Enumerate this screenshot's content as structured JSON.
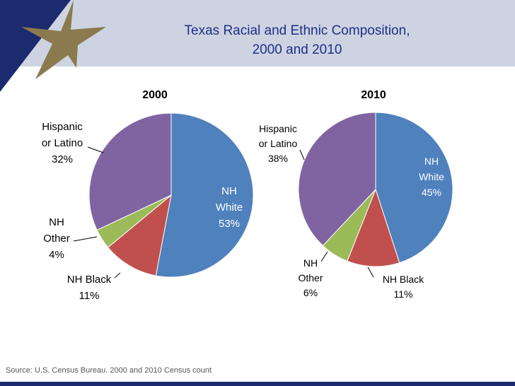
{
  "title": {
    "line1": "Texas Racial and Ethnic Composition,",
    "line2": "2000 and 2010"
  },
  "source": "Source: U.S. Census Bureau. 2000 and 2010 Census count",
  "colors": {
    "header_band": "#cdd3e0",
    "logo_navy": "#1c2a6e",
    "logo_star": "#8a7a4e",
    "title_text": "#1f2f8a"
  },
  "chart_data": [
    {
      "type": "pie",
      "title": "2000",
      "categories": [
        "NH White",
        "NH Black",
        "NH Other",
        "Hispanic or Latino"
      ],
      "values": [
        53,
        11,
        4,
        32
      ],
      "colors": [
        "#4f81bd",
        "#c0504d",
        "#9bbb59",
        "#8064a2"
      ],
      "labels": {
        "white": {
          "l1": "NH",
          "l2": "White",
          "pct": "53%"
        },
        "black": {
          "l1": "NH Black",
          "pct": "11%"
        },
        "other": {
          "l1": "NH",
          "l2": "Other",
          "pct": "4%"
        },
        "hispanic": {
          "l1": "Hispanic",
          "l2": "or Latino",
          "pct": "32%"
        }
      }
    },
    {
      "type": "pie",
      "title": "2010",
      "categories": [
        "NH White",
        "NH Black",
        "NH Other",
        "Hispanic or Latino"
      ],
      "values": [
        45,
        11,
        6,
        38
      ],
      "colors": [
        "#4f81bd",
        "#c0504d",
        "#9bbb59",
        "#8064a2"
      ],
      "labels": {
        "white": {
          "l1": "NH",
          "l2": "White",
          "pct": "45%"
        },
        "black": {
          "l1": "NH Black",
          "pct": "11%"
        },
        "other": {
          "l1": "NH",
          "l2": "Other",
          "pct": "6%"
        },
        "hispanic": {
          "l1": "Hispanic",
          "l2": "or Latino",
          "pct": "38%"
        }
      }
    }
  ]
}
